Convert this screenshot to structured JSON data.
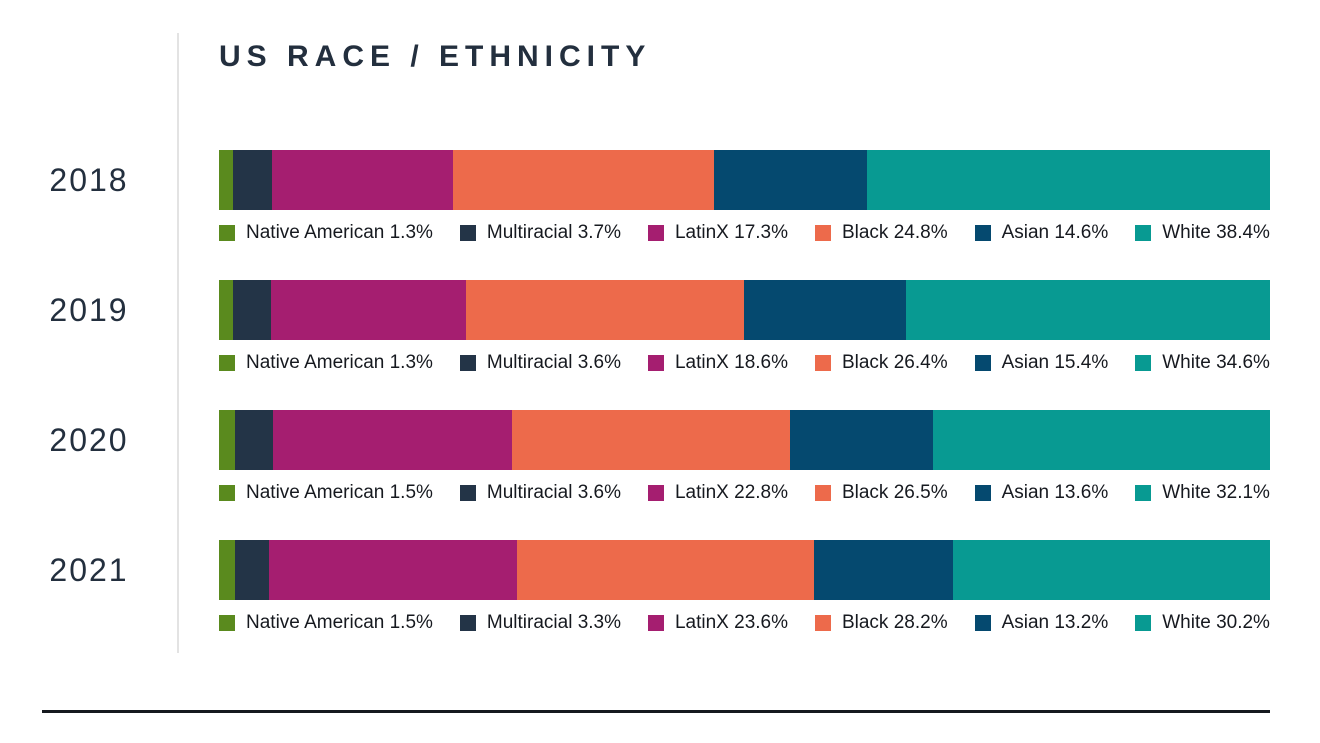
{
  "title": "US RACE / ETHNICITY",
  "colors": {
    "title_text": "#232f3e",
    "year_text": "#232f3e",
    "legend_text": "#16191f",
    "axis_line": "#e3e3e3",
    "bottom_rule": "#16191f",
    "background": "#ffffff"
  },
  "chart_data": {
    "type": "bar",
    "orientation": "horizontal-stacked",
    "title": "US RACE / ETHNICITY",
    "categories": [
      "2018",
      "2019",
      "2020",
      "2021"
    ],
    "series": [
      {
        "name": "Native American",
        "color": "#5a8a1e",
        "values": [
          1.3,
          1.3,
          1.5,
          1.5
        ]
      },
      {
        "name": "Multiracial",
        "color": "#233447",
        "values": [
          3.7,
          3.6,
          3.6,
          3.3
        ]
      },
      {
        "name": "LatinX",
        "color": "#a51e70",
        "values": [
          17.3,
          18.6,
          22.8,
          23.6
        ]
      },
      {
        "name": "Black",
        "color": "#ed6a4b",
        "values": [
          24.8,
          26.4,
          26.5,
          28.2
        ]
      },
      {
        "name": "Asian",
        "color": "#05496f",
        "values": [
          14.6,
          15.4,
          13.6,
          13.2
        ]
      },
      {
        "name": "White",
        "color": "#089a92",
        "values": [
          38.4,
          34.6,
          32.1,
          30.2
        ]
      }
    ],
    "value_suffix": "%",
    "xlabel": "",
    "ylabel": "",
    "legend_position": "below-each-bar",
    "grid": false
  }
}
